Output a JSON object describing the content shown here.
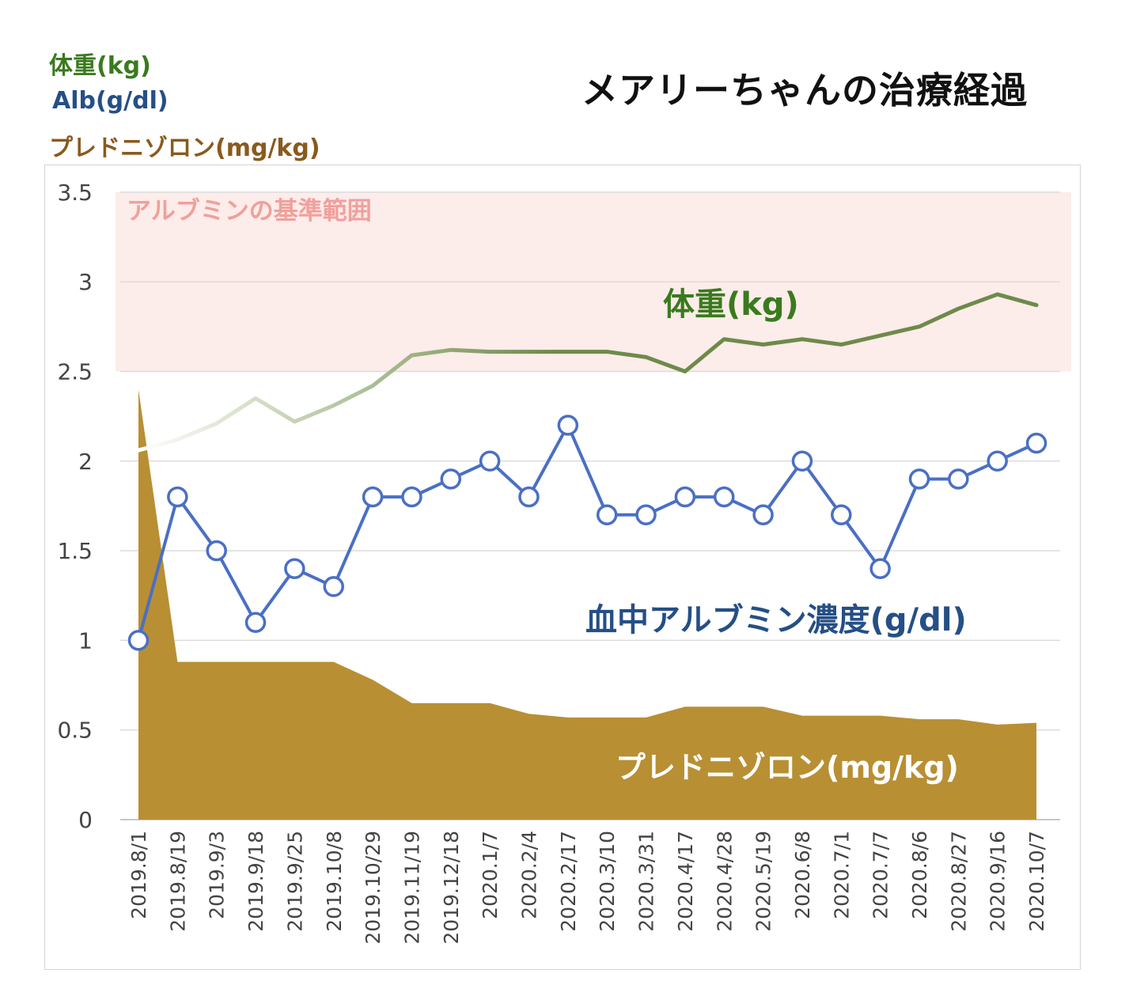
{
  "chart_data": {
    "type": "line",
    "title": "メアリーちゃんの治療経過",
    "legend": [
      {
        "label": "体重(kg)",
        "color": "#3a7a1e"
      },
      {
        "label": "Alb(g/dl)",
        "color": "#254f86"
      },
      {
        "label": "プレドニゾロン(mg/kg)",
        "color": "#8a5a1c"
      }
    ],
    "categories": [
      "2019.8/1",
      "2019.8/19",
      "2019.9/3",
      "2019.9/18",
      "2019.9/25",
      "2019.10/8",
      "2019.10/29",
      "2019.11/19",
      "2019.12/18",
      "2020.1/7",
      "2020.2/4",
      "2020.2/17",
      "2020.3/10",
      "2020.3/31",
      "2020.4/17",
      "2020.4/28",
      "2020.5/19",
      "2020.6/8",
      "2020.7/1",
      "2020.7/7",
      "2020.8/6",
      "2020.8/27",
      "2020.9/16",
      "2020.10/7"
    ],
    "yticks": [
      "0",
      "0.5",
      "1",
      "1.5",
      "2",
      "2.5",
      "3",
      "3.5"
    ],
    "ylim": [
      0,
      3.5
    ],
    "grid": true,
    "reference_band": {
      "label": "アルブミンの基準範囲",
      "from": 2.5,
      "to": 3.5,
      "color": "#fcecea",
      "label_color": "#f0a09c"
    },
    "series": [
      {
        "name": "体重(kg)",
        "kind": "line",
        "color": "#6e8a4a",
        "values": [
          2.06,
          2.12,
          2.21,
          2.35,
          2.22,
          2.31,
          2.42,
          2.59,
          2.62,
          2.61,
          2.61,
          2.61,
          2.61,
          2.58,
          2.5,
          2.68,
          2.65,
          2.68,
          2.65,
          2.7,
          2.75,
          2.85,
          2.93,
          2.87
        ]
      },
      {
        "name": "血中アルブミン濃度(g/dl)",
        "kind": "line-marker",
        "color": "#4a6fc4",
        "values": [
          1.0,
          1.8,
          1.5,
          1.1,
          1.4,
          1.3,
          1.8,
          1.8,
          1.9,
          2.0,
          1.8,
          2.2,
          1.7,
          1.7,
          1.8,
          1.8,
          1.7,
          2.0,
          1.7,
          1.4,
          1.9,
          1.9,
          2.0,
          2.1
        ]
      },
      {
        "name": "プレドニゾロン(mg/kg)",
        "kind": "area",
        "color": "#b88f33",
        "values": [
          2.4,
          0.88,
          0.88,
          0.88,
          0.88,
          0.88,
          0.78,
          0.65,
          0.65,
          0.65,
          0.59,
          0.57,
          0.57,
          0.57,
          0.63,
          0.63,
          0.63,
          0.58,
          0.58,
          0.58,
          0.56,
          0.56,
          0.53,
          0.54
        ]
      }
    ],
    "annotations": {
      "weight": {
        "text": "体重(kg)",
        "color": "#3a7a1e"
      },
      "albumin": {
        "text": "血中アルブミン濃度(g/dl)",
        "color": "#254f86"
      },
      "prednisolone": {
        "text": "プレドニゾロン(mg/kg)",
        "color": "#ffffff"
      }
    }
  }
}
